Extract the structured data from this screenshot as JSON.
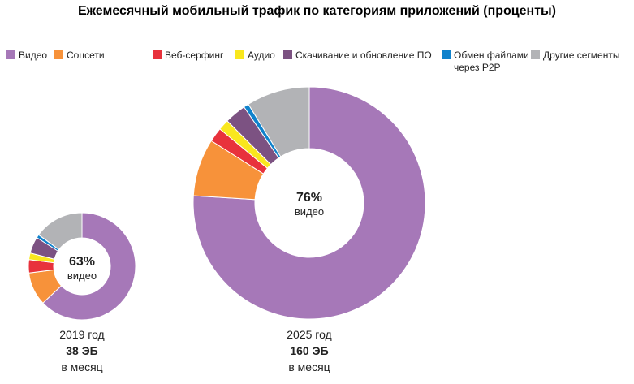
{
  "chart_data": {
    "type": "pie",
    "title": "Ежемесячный мобильный трафик по категориям приложений (проценты)",
    "legend": [
      {
        "label": "Видео",
        "color": "#a678b8"
      },
      {
        "label": "Соцсети",
        "color": "#f7923a"
      },
      {
        "label": "Веб-серфинг",
        "color": "#e8323c"
      },
      {
        "label": "Аудио",
        "color": "#f9e71e"
      },
      {
        "label": "Скачивание и обновление ПО",
        "color": "#7c5282"
      },
      {
        "label": "Обмен файлами",
        "label2": "через P2P",
        "color": "#0f82cc"
      },
      {
        "label": "Другие сегменты",
        "color": "#b2b3b6"
      }
    ],
    "charts": [
      {
        "year": "2019 год",
        "volume": "38 ЭБ",
        "unit": "в месяц",
        "center_value": "63%",
        "center_label": "видео",
        "values": [
          63,
          10,
          4,
          2,
          5,
          1,
          15
        ]
      },
      {
        "year": "2025 год",
        "volume": "160 ЭБ",
        "unit": "в месяц",
        "center_value": "76%",
        "center_label": "видео",
        "values": [
          76,
          8,
          2,
          1.5,
          3,
          0.7,
          8.8
        ]
      }
    ]
  }
}
